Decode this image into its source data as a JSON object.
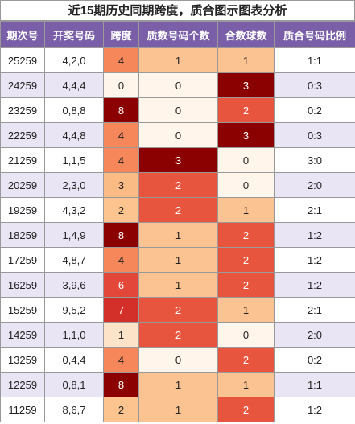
{
  "title": "近15期历史同期跨度，质合图示图表分析",
  "table": {
    "headers": [
      "期次号",
      "开奖号码",
      "跨度",
      "质数号码个数",
      "合数球数",
      "质合号码比例"
    ],
    "rows": [
      [
        "25259",
        "4,2,0",
        4,
        1,
        1,
        "1:1"
      ],
      [
        "24259",
        "4,4,4",
        0,
        0,
        3,
        "0:3"
      ],
      [
        "23259",
        "0,8,8",
        8,
        0,
        2,
        "0:2"
      ],
      [
        "22259",
        "4,4,8",
        4,
        0,
        3,
        "0:3"
      ],
      [
        "21259",
        "1,1,5",
        4,
        3,
        0,
        "3:0"
      ],
      [
        "20259",
        "2,3,0",
        3,
        2,
        0,
        "2:0"
      ],
      [
        "19259",
        "4,3,2",
        2,
        2,
        1,
        "2:1"
      ],
      [
        "18259",
        "1,4,9",
        8,
        1,
        2,
        "1:2"
      ],
      [
        "17259",
        "4,8,7",
        4,
        1,
        2,
        "1:2"
      ],
      [
        "16259",
        "3,9,6",
        6,
        1,
        2,
        "1:2"
      ],
      [
        "15259",
        "9,5,2",
        7,
        2,
        1,
        "2:1"
      ],
      [
        "14259",
        "1,1,0",
        1,
        2,
        0,
        "2:0"
      ],
      [
        "13259",
        "0,4,4",
        4,
        0,
        2,
        "0:2"
      ],
      [
        "12259",
        "0,8,1",
        8,
        1,
        1,
        "1:1"
      ],
      [
        "11259",
        "8,6,7",
        2,
        1,
        2,
        "1:2"
      ]
    ],
    "span_palette": [
      "#fff5eb",
      "#fde3c8",
      "#fdc48f",
      "#fbbb84",
      "#f6875a",
      "#ef6a45",
      "#e2473a",
      "#d4302a",
      "#8b0000",
      "#7f0000"
    ],
    "count_palette": [
      "#fff5eb",
      "#fcc392",
      "#e8553f",
      "#8b0000"
    ]
  }
}
